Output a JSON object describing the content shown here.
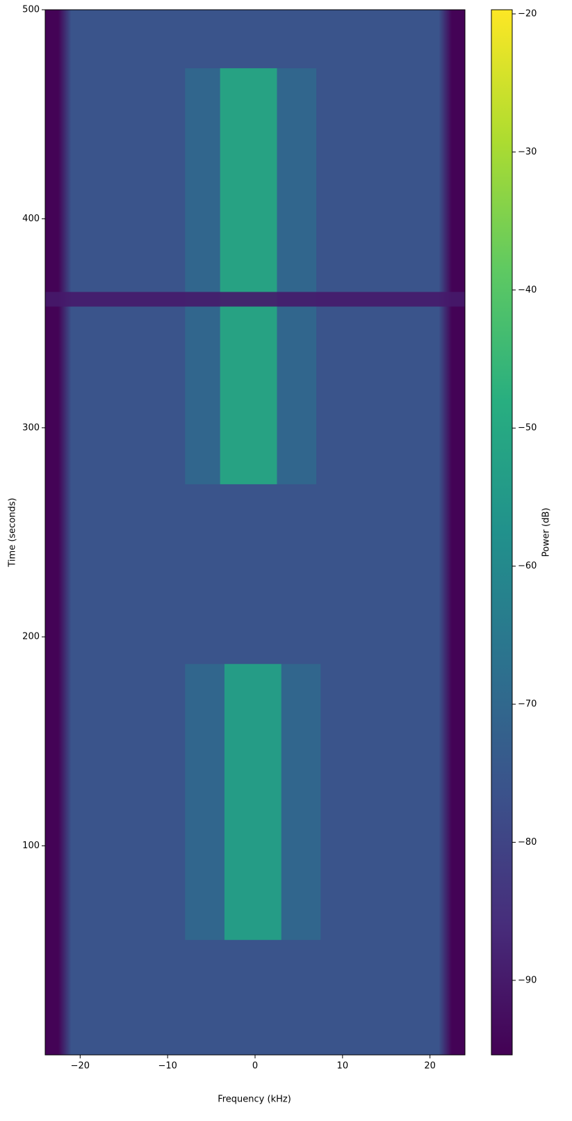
{
  "chart_data": {
    "type": "spectrogram",
    "xlabel": "Frequency (kHz)",
    "ylabel": "Time (seconds)",
    "colorbar_label": "Power (dB)",
    "xlim": [
      -24,
      24
    ],
    "ylim": [
      0,
      500
    ],
    "clim": [
      -95.4,
      -19.7
    ],
    "xticks": [
      {
        "value": -20,
        "label": "−20"
      },
      {
        "value": -10,
        "label": "−10"
      },
      0,
      10,
      20
    ],
    "yticks": [
      100,
      200,
      300,
      400,
      500
    ],
    "cticks": [
      {
        "value": -20,
        "label": "−20"
      },
      {
        "value": -30,
        "label": "−30"
      },
      {
        "value": -40,
        "label": "−40"
      },
      {
        "value": -50,
        "label": "−50"
      },
      {
        "value": -60,
        "label": "−60"
      },
      {
        "value": -70,
        "label": "−70"
      },
      {
        "value": -80,
        "label": "−80"
      },
      {
        "value": -90,
        "label": "−90"
      }
    ],
    "colormap": [
      "#440154",
      "#472d7b",
      "#3b528b",
      "#2c728e",
      "#21918c",
      "#28ae80",
      "#5ec962",
      "#addc30",
      "#fde725"
    ],
    "background_power": -76,
    "edge_power": -95,
    "passband": [
      -21,
      21
    ],
    "bursts": [
      {
        "t0": 55,
        "t1": 187,
        "f0": -8,
        "f1": 7.5,
        "power": -70
      },
      {
        "t0": 55,
        "t1": 187,
        "f0": -3.5,
        "f1": 3,
        "power": -52
      },
      {
        "t0": 273,
        "t1": 472,
        "f0": -8,
        "f1": 7,
        "power": -70
      },
      {
        "t0": 273,
        "t1": 472,
        "f0": -4,
        "f1": 2.5,
        "power": -50
      },
      {
        "t0": 358,
        "t1": 365,
        "f0": -24,
        "f1": 24,
        "power": -90
      }
    ]
  }
}
